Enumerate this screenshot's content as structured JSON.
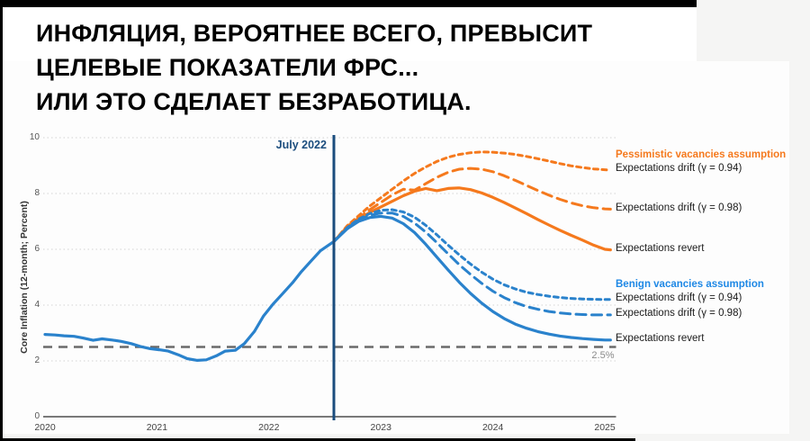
{
  "frame": {
    "strip_color": "#000000",
    "page_bg": "#f5f5f4",
    "panel_bg": "#ffffff"
  },
  "title": {
    "lines": [
      "ИНФЛЯЦИЯ, ВЕРОЯТНЕЕ ВСЕГО, ПРЕВЫСИТ",
      "ЦЕЛЕВЫЕ ПОКАЗАТЕЛИ ФРС...",
      "ИЛИ ЭТО СДЕЛАЕТ БЕЗРАБОТИЦА."
    ],
    "color": "#000000"
  },
  "chart_data": {
    "type": "line",
    "ylabel": "Core Inflation (12-month; Percent)",
    "xlabel": "",
    "xlim": [
      2020,
      2025.1
    ],
    "ylim": [
      0,
      10
    ],
    "xticks": [
      2020,
      2021,
      2022,
      2023,
      2024,
      2025
    ],
    "yticks": [
      0,
      2,
      4,
      6,
      8,
      10
    ],
    "grid": "horizontal dotted",
    "legend_position": "right of plot, labels aligned to line endpoints",
    "annotation": {
      "label": "July 2022",
      "x": 2022.58,
      "color": "#1b4d7e"
    },
    "target_line": {
      "y": 2.5,
      "label": "2.5%",
      "color": "#6a6a6a",
      "style": "dashed"
    },
    "group_headers": [
      {
        "label": "Pessimistic vacancies assumption",
        "color": "#f5791d",
        "anchor_series": 1
      },
      {
        "label": "Benign vacancies assumption",
        "color": "#1e88e5",
        "anchor_series": 4
      }
    ],
    "series": [
      {
        "name": "core-inflation-actual",
        "legend": null,
        "color": "#2a82cc",
        "dash": "solid",
        "width": 3.2,
        "x": [
          2020.0,
          2020.09,
          2020.17,
          2020.26,
          2020.34,
          2020.43,
          2020.51,
          2020.6,
          2020.68,
          2020.77,
          2020.85,
          2020.94,
          2021.02,
          2021.1,
          2021.19,
          2021.27,
          2021.36,
          2021.44,
          2021.53,
          2021.61,
          2021.7,
          2021.78,
          2021.87,
          2021.95,
          2022.04,
          2022.12,
          2022.21,
          2022.29,
          2022.38,
          2022.46,
          2022.58
        ],
        "y": [
          2.95,
          2.93,
          2.9,
          2.88,
          2.82,
          2.74,
          2.79,
          2.75,
          2.7,
          2.62,
          2.52,
          2.44,
          2.4,
          2.35,
          2.22,
          2.08,
          2.02,
          2.04,
          2.18,
          2.35,
          2.38,
          2.62,
          3.05,
          3.6,
          4.05,
          4.4,
          4.8,
          5.2,
          5.6,
          5.95,
          6.28
        ]
      },
      {
        "name": "pessimistic-drift-094",
        "legend": "Expectations drift (γ = 0.94)",
        "color": "#f5791d",
        "dash": "short",
        "width": 3,
        "x": [
          2022.58,
          2022.7,
          2022.8,
          2022.9,
          2023.0,
          2023.1,
          2023.2,
          2023.3,
          2023.4,
          2023.5,
          2023.6,
          2023.7,
          2023.8,
          2023.9,
          2024.0,
          2024.1,
          2024.2,
          2024.3,
          2024.4,
          2024.5,
          2024.6,
          2024.7,
          2024.8,
          2024.9,
          2025.0,
          2025.05
        ],
        "y": [
          6.28,
          6.85,
          7.2,
          7.55,
          7.85,
          8.15,
          8.45,
          8.72,
          8.95,
          9.15,
          9.3,
          9.4,
          9.46,
          9.49,
          9.48,
          9.45,
          9.4,
          9.33,
          9.25,
          9.16,
          9.07,
          8.99,
          8.93,
          8.88,
          8.85,
          8.84
        ]
      },
      {
        "name": "pessimistic-drift-098",
        "legend": "Expectations drift (γ = 0.98)",
        "color": "#f5791d",
        "dash": "long",
        "width": 3,
        "x": [
          2022.58,
          2022.7,
          2022.8,
          2022.9,
          2023.0,
          2023.1,
          2023.2,
          2023.3,
          2023.4,
          2023.5,
          2023.6,
          2023.7,
          2023.8,
          2023.9,
          2024.0,
          2024.1,
          2024.2,
          2024.3,
          2024.4,
          2024.5,
          2024.6,
          2024.7,
          2024.8,
          2024.9,
          2025.0,
          2025.05
        ],
        "y": [
          6.28,
          6.82,
          7.12,
          7.42,
          7.68,
          7.95,
          8.15,
          8.12,
          8.35,
          8.58,
          8.76,
          8.87,
          8.9,
          8.87,
          8.78,
          8.64,
          8.47,
          8.29,
          8.11,
          7.94,
          7.79,
          7.66,
          7.56,
          7.49,
          7.45,
          7.44
        ]
      },
      {
        "name": "pessimistic-revert",
        "legend": "Expectations revert",
        "color": "#f5791d",
        "dash": "solid",
        "width": 3.2,
        "x": [
          2022.58,
          2022.7,
          2022.8,
          2022.9,
          2023.0,
          2023.1,
          2023.2,
          2023.3,
          2023.4,
          2023.5,
          2023.6,
          2023.7,
          2023.8,
          2023.9,
          2024.0,
          2024.1,
          2024.2,
          2024.3,
          2024.4,
          2024.5,
          2024.6,
          2024.7,
          2024.8,
          2024.9,
          2025.0,
          2025.05
        ],
        "y": [
          6.28,
          6.8,
          7.08,
          7.32,
          7.52,
          7.72,
          7.92,
          8.08,
          8.18,
          8.1,
          8.18,
          8.2,
          8.14,
          8.02,
          7.86,
          7.68,
          7.48,
          7.28,
          7.07,
          6.87,
          6.68,
          6.5,
          6.33,
          6.15,
          6.0,
          5.98
        ]
      },
      {
        "name": "benign-drift-094",
        "legend": "Expectations drift (γ = 0.94)",
        "color": "#2a82cc",
        "dash": "short",
        "width": 3,
        "x": [
          2022.58,
          2022.7,
          2022.8,
          2022.9,
          2023.0,
          2023.1,
          2023.2,
          2023.3,
          2023.4,
          2023.5,
          2023.6,
          2023.7,
          2023.8,
          2023.9,
          2024.0,
          2024.1,
          2024.2,
          2024.3,
          2024.4,
          2024.5,
          2024.6,
          2024.7,
          2024.8,
          2024.9,
          2025.0,
          2025.05
        ],
        "y": [
          6.28,
          6.78,
          7.08,
          7.28,
          7.4,
          7.42,
          7.34,
          7.15,
          6.86,
          6.52,
          6.15,
          5.8,
          5.47,
          5.18,
          4.93,
          4.73,
          4.58,
          4.46,
          4.38,
          4.32,
          4.27,
          4.24,
          4.22,
          4.21,
          4.2,
          4.2
        ]
      },
      {
        "name": "benign-drift-098",
        "legend": "Expectations drift (γ = 0.98)",
        "color": "#2a82cc",
        "dash": "long",
        "width": 3,
        "x": [
          2022.58,
          2022.7,
          2022.8,
          2022.9,
          2023.0,
          2023.1,
          2023.2,
          2023.3,
          2023.4,
          2023.5,
          2023.6,
          2023.7,
          2023.8,
          2023.9,
          2024.0,
          2024.1,
          2024.2,
          2024.3,
          2024.4,
          2024.5,
          2024.6,
          2024.7,
          2024.8,
          2024.9,
          2025.0,
          2025.05
        ],
        "y": [
          6.28,
          6.76,
          7.04,
          7.22,
          7.3,
          7.3,
          7.18,
          6.94,
          6.62,
          6.24,
          5.84,
          5.45,
          5.1,
          4.78,
          4.5,
          4.27,
          4.09,
          3.95,
          3.85,
          3.77,
          3.72,
          3.68,
          3.66,
          3.65,
          3.65,
          3.65
        ]
      },
      {
        "name": "benign-revert",
        "legend": "Expectations revert",
        "color": "#2a82cc",
        "dash": "solid",
        "width": 3.2,
        "x": [
          2022.58,
          2022.7,
          2022.8,
          2022.9,
          2023.0,
          2023.1,
          2023.2,
          2023.3,
          2023.4,
          2023.5,
          2023.6,
          2023.7,
          2023.8,
          2023.9,
          2024.0,
          2024.1,
          2024.2,
          2024.3,
          2024.4,
          2024.5,
          2024.6,
          2024.7,
          2024.8,
          2024.9,
          2025.0,
          2025.05
        ],
        "y": [
          6.28,
          6.74,
          7.0,
          7.14,
          7.18,
          7.12,
          6.92,
          6.6,
          6.18,
          5.72,
          5.26,
          4.82,
          4.42,
          4.07,
          3.77,
          3.52,
          3.32,
          3.17,
          3.05,
          2.96,
          2.89,
          2.84,
          2.8,
          2.77,
          2.75,
          2.75
        ]
      }
    ]
  }
}
